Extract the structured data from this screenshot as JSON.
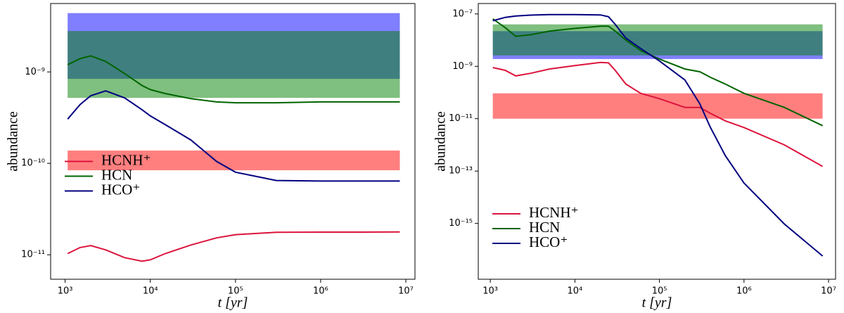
{
  "chart_data": [
    {
      "type": "line",
      "xlabel": "t [yr]",
      "ylabel": "abundance",
      "xscale": "log",
      "yscale": "log",
      "legend": "center left",
      "xlim": [
        676,
        12800000
      ],
      "ylim": [
        5.4e-12,
        5.6e-09
      ],
      "xticks": [
        {
          "value": 1000,
          "label": "10³"
        },
        {
          "value": 10000,
          "label": "10⁴"
        },
        {
          "value": 100000,
          "label": "10⁵"
        },
        {
          "value": 1000000,
          "label": "10⁶"
        },
        {
          "value": 10000000,
          "label": "10⁷"
        }
      ],
      "yticks": [
        {
          "value": 1e-11,
          "label": "10⁻¹¹"
        },
        {
          "value": 1e-10,
          "label": "10⁻¹⁰"
        },
        {
          "value": 1e-09,
          "label": "10⁻⁹"
        }
      ],
      "bands": [
        {
          "color": "#0000ff",
          "range": [
            8.4e-10,
            4.4e-09
          ]
        },
        {
          "color": "#008000",
          "range": [
            5.2e-10,
            2.8e-09
          ]
        },
        {
          "color": "#ff0000",
          "range": [
            8.4e-11,
            1.38e-10
          ]
        }
      ],
      "x": [
        1070,
        1500,
        2000,
        3000,
        5000,
        8000,
        10000,
        15000,
        30000,
        60000,
        100000,
        300000,
        1000000,
        3000000,
        8500000
      ],
      "series": [
        {
          "name": "HCNH⁺",
          "color": "#dc143c",
          "values": [
            1.03e-11,
            1.2e-11,
            1.26e-11,
            1.13e-11,
            9.3e-12,
            8.5e-12,
            8.8e-12,
            1.03e-11,
            1.28e-11,
            1.53e-11,
            1.66e-11,
            1.76e-11,
            1.77e-11,
            1.77e-11,
            1.78e-11
          ]
        },
        {
          "name": "HCN",
          "color": "#006400",
          "values": [
            1.2e-09,
            1.4e-09,
            1.5e-09,
            1.3e-09,
            9.6e-10,
            7.1e-10,
            6.4e-10,
            5.8e-10,
            5.1e-10,
            4.7e-10,
            4.6e-10,
            4.6e-10,
            4.7e-10,
            4.7e-10,
            4.7e-10
          ]
        },
        {
          "name": "HCO⁺",
          "color": "#000080",
          "values": [
            3.05e-10,
            4.4e-10,
            5.5e-10,
            6.2e-10,
            5.2e-10,
            3.85e-10,
            3.3e-10,
            2.65e-10,
            1.8e-10,
            1.05e-10,
            8e-11,
            6.5e-11,
            6.4e-11,
            6.4e-11,
            6.4e-11
          ]
        }
      ]
    },
    {
      "type": "line",
      "xlabel": "t [yr]",
      "ylabel": "abundance",
      "xscale": "log",
      "yscale": "log",
      "legend": "lower left",
      "xlim": [
        720,
        12100000
      ],
      "ylim": [
        7.4e-18,
        2.5e-07
      ],
      "xticks": [
        {
          "value": 1000,
          "label": "10³"
        },
        {
          "value": 10000,
          "label": "10⁴"
        },
        {
          "value": 100000,
          "label": "10⁵"
        },
        {
          "value": 1000000,
          "label": "10⁶"
        },
        {
          "value": 10000000,
          "label": "10⁷"
        }
      ],
      "yticks": [
        {
          "value": 1e-15,
          "label": "10⁻¹⁵"
        },
        {
          "value": 1e-13,
          "label": "10⁻¹³"
        },
        {
          "value": 1e-11,
          "label": "10⁻¹¹"
        },
        {
          "value": 1e-09,
          "label": "10⁻⁹"
        },
        {
          "value": 1e-07,
          "label": "10⁻⁷"
        }
      ],
      "bands": [
        {
          "color": "#0000ff",
          "range": [
            1.9e-09,
            2.2e-08
          ]
        },
        {
          "color": "#008000",
          "range": [
            2.6e-09,
            4e-08
          ]
        },
        {
          "color": "#ff0000",
          "range": [
            1e-11,
            9.3e-11
          ]
        }
      ],
      "x": [
        1070,
        1500,
        2000,
        3000,
        5000,
        10000,
        20000,
        25000,
        30000,
        40000,
        60000,
        100000,
        200000,
        300000,
        400000,
        600000,
        1000000,
        3000000,
        8500000
      ],
      "series": [
        {
          "name": "HCNH⁺",
          "color": "#dc143c",
          "values": [
            9e-10,
            7e-10,
            4.3e-10,
            5.4e-10,
            7.9e-10,
            1.06e-09,
            1.4e-09,
            1.35e-09,
            7e-10,
            2.1e-10,
            9.3e-11,
            5.8e-11,
            2.7e-11,
            2.7e-11,
            1.6e-11,
            8.3e-12,
            4.6e-12,
            1e-12,
            1.5e-13
          ]
        },
        {
          "name": "HCN",
          "color": "#006400",
          "values": [
            6.5e-08,
            3e-08,
            1.4e-08,
            1.6e-08,
            2.2e-08,
            2.8e-08,
            3.4e-08,
            3.4e-08,
            2.2e-08,
            1e-08,
            4e-09,
            1.9e-09,
            7.9e-10,
            6.2e-10,
            3.8e-10,
            2.1e-10,
            9.3e-11,
            2.7e-11,
            5.4e-12
          ]
        },
        {
          "name": "HCO⁺",
          "color": "#000080",
          "values": [
            5.5e-08,
            7.4e-08,
            8.3e-08,
            9e-08,
            9.4e-08,
            9.4e-08,
            9.2e-08,
            7.8e-08,
            4e-08,
            1.2e-08,
            4.8e-09,
            1.6e-09,
            3e-10,
            3.7e-11,
            4.7e-12,
            3.9e-13,
            3.5e-14,
            9.5e-16,
            5.7e-17
          ]
        }
      ]
    }
  ]
}
